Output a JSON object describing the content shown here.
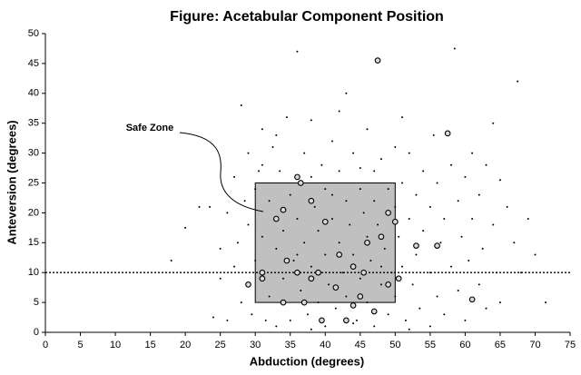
{
  "chart_data": {
    "type": "scatter",
    "title": "Figure: Acetabular Component Position",
    "x_label": "Abduction (degrees)",
    "y_label": "Anteversion (degrees)",
    "xlim": [
      0,
      75
    ],
    "xticks": [
      0,
      5,
      10,
      15,
      20,
      25,
      30,
      35,
      40,
      45,
      50,
      55,
      60,
      65,
      70,
      75
    ],
    "ylim": [
      0,
      50
    ],
    "yticks": [
      0,
      5,
      10,
      15,
      20,
      25,
      30,
      35,
      40,
      45,
      50
    ],
    "grid": false,
    "safe_zone": {
      "label": "Safe Zone",
      "xlim": [
        30,
        50
      ],
      "ylim": [
        5,
        25
      ],
      "color": "#c0c0c0"
    },
    "hline": 10,
    "series": [
      {
        "color": "#000000",
        "marker": "dot",
        "x": [
          18,
          20,
          22,
          23.5,
          24,
          25,
          25,
          26,
          26,
          27,
          27,
          27.5,
          28,
          28,
          28.5,
          29,
          29,
          29.5,
          30,
          30,
          31,
          31,
          31,
          31.5,
          32,
          32,
          32.5,
          33,
          33,
          33.5,
          34,
          34,
          34.5,
          35,
          35,
          35.5,
          36,
          36,
          36.5,
          37,
          37,
          37.5,
          38,
          38,
          38,
          38.5,
          39,
          39,
          39.5,
          40,
          40,
          40,
          40.5,
          41,
          41,
          41.5,
          42,
          42,
          42,
          42.5,
          43,
          43,
          43,
          43.5,
          44,
          44,
          44.5,
          45,
          45,
          45.5,
          46,
          46,
          46,
          46.5,
          47,
          47,
          47,
          47.5,
          48,
          48,
          48.5,
          49,
          49,
          49.5,
          50,
          50,
          50,
          50.5,
          51,
          51,
          51,
          51.5,
          52,
          52,
          52.5,
          53,
          53,
          53.5,
          54,
          54,
          55,
          55,
          55.5,
          56,
          56,
          56.5,
          57,
          57,
          58,
          58,
          58.5,
          59,
          59,
          59.5,
          60,
          60,
          60.5,
          61,
          61,
          62,
          62,
          62.5,
          63,
          63,
          64,
          64,
          64.5,
          65,
          65,
          66,
          67,
          67.5,
          68,
          69,
          70,
          71.5,
          44,
          38,
          52,
          36,
          41,
          45,
          48,
          33,
          30.5,
          55
        ],
        "values": [
          12,
          17.5,
          21,
          21,
          2.5,
          9,
          14,
          2,
          20,
          26,
          11,
          15,
          38,
          5,
          22,
          30,
          18,
          3,
          24,
          12,
          34,
          28,
          16,
          2,
          22,
          6,
          31,
          14,
          1,
          27,
          9,
          17,
          36,
          2,
          23,
          12,
          47,
          19,
          7,
          30,
          15,
          3,
          35.5,
          26,
          11,
          21,
          17,
          5,
          28,
          13,
          24,
          1,
          8,
          32,
          19,
          4,
          37,
          15,
          27,
          10,
          40,
          22,
          6,
          18,
          13,
          30,
          2,
          24,
          9,
          20,
          34,
          16,
          5,
          12,
          27,
          22,
          1,
          18,
          8,
          29,
          14,
          24,
          3,
          10,
          31,
          21,
          6,
          16,
          36,
          25,
          11,
          2,
          19,
          30,
          8,
          23,
          13,
          4,
          27,
          17,
          10,
          21,
          33,
          6,
          25,
          15,
          3,
          19,
          28,
          11,
          47.5,
          22,
          7,
          16,
          2,
          26,
          12,
          19,
          30,
          8,
          23,
          14,
          28,
          4,
          35,
          18,
          10,
          25.5,
          5,
          21,
          15,
          42,
          10,
          19,
          13,
          5,
          1.5,
          0.5,
          0.5,
          13,
          23,
          27.5,
          11,
          33,
          27,
          1
        ]
      },
      {
        "color": "#000000",
        "marker": "ring",
        "x": [
          47.5,
          57.5,
          36,
          36.5,
          34,
          33,
          31,
          31,
          29,
          34,
          36,
          38,
          40,
          39,
          44,
          45.5,
          49,
          50,
          48,
          50.5,
          49,
          53,
          56,
          61,
          43,
          44,
          39.5,
          41.5,
          38,
          37,
          47,
          46,
          42,
          45,
          34.5
        ],
        "values": [
          45.5,
          33.3,
          26,
          25,
          20.5,
          19,
          10,
          9,
          8,
          5,
          10,
          22,
          18.5,
          10,
          11,
          10,
          20,
          18.5,
          16,
          9,
          8,
          14.5,
          14.5,
          5.5,
          2,
          4.5,
          2,
          7.5,
          9,
          5,
          3.5,
          15,
          13,
          6,
          12
        ]
      }
    ]
  }
}
